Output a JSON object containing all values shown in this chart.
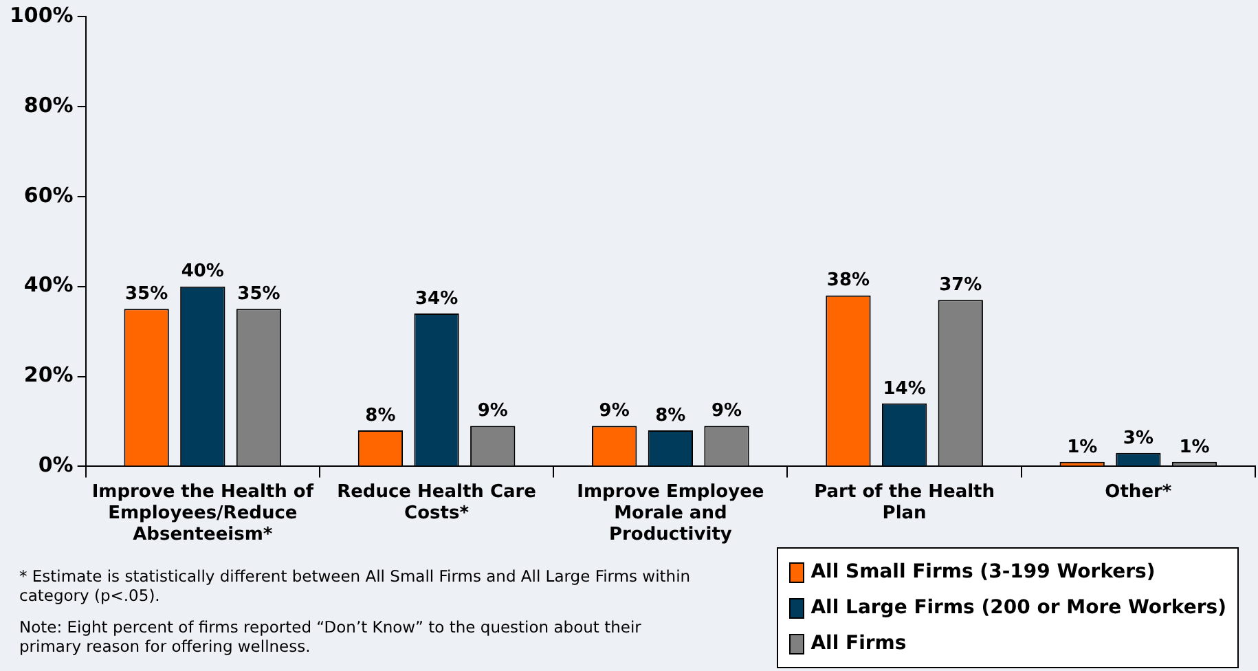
{
  "chart_data": {
    "type": "bar",
    "categories": [
      "Improve the Health of Employees/Reduce Absenteeism*",
      "Reduce Health Care Costs*",
      "Improve Employee Morale and Productivity",
      "Part of the Health Plan",
      "Other*"
    ],
    "series": [
      {
        "name": "All Small Firms (3-199 Workers)",
        "color": "#ff6600",
        "values": [
          35,
          8,
          9,
          38,
          1
        ]
      },
      {
        "name": "All Large Firms (200 or More Workers)",
        "color": "#003b5c",
        "values": [
          40,
          34,
          8,
          14,
          3
        ]
      },
      {
        "name": "All Firms",
        "color": "#808080",
        "values": [
          35,
          9,
          9,
          37,
          1
        ]
      }
    ],
    "ylim": [
      0,
      100
    ],
    "yticks": [
      {
        "value": 0,
        "label": "0%"
      },
      {
        "value": 20,
        "label": "20%"
      },
      {
        "value": 40,
        "label": "40%"
      },
      {
        "value": 60,
        "label": "60%"
      },
      {
        "value": 80,
        "label": "80%"
      },
      {
        "value": 100,
        "label": "100%"
      }
    ],
    "value_labels": [
      [
        "35%",
        "8%",
        "9%",
        "38%",
        "1%"
      ],
      [
        "40%",
        "34%",
        "8%",
        "14%",
        "3%"
      ],
      [
        "35%",
        "9%",
        "9%",
        "37%",
        "1%"
      ]
    ],
    "grid": false,
    "legend": "bottom right",
    "annotations": [
      "* Estimate is statistically different between All Small Firms and All Large Firms within category (p<.05).",
      "Note: Eight percent of firms reported “Don’t Know” to the question about their primary reason for offering wellness."
    ]
  }
}
